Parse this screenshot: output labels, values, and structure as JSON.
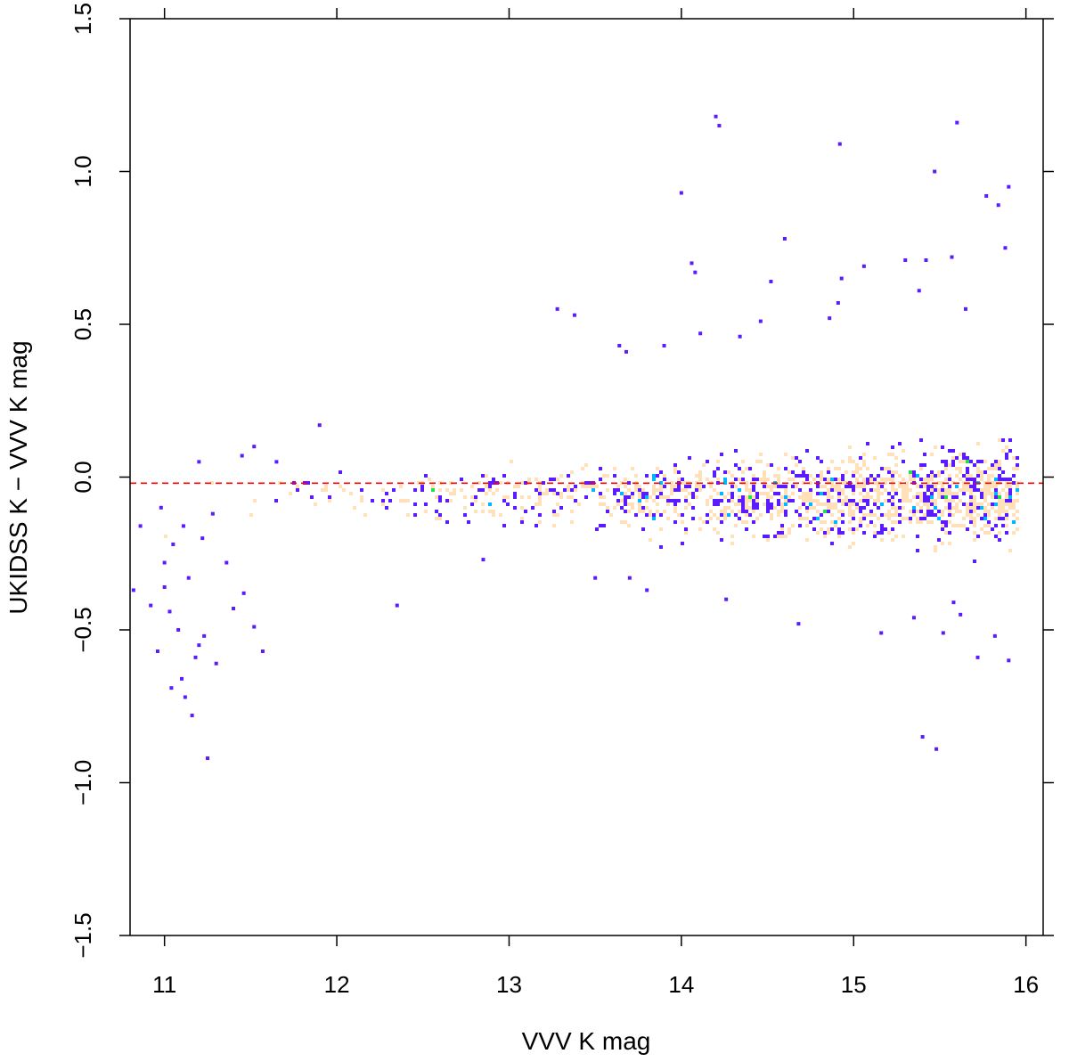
{
  "chart_data": {
    "type": "heatmap",
    "subtype": "2d-density-scatter",
    "title": "",
    "xlabel": "VVV K mag",
    "ylabel": "UKIDSS K − VVV K mag",
    "xlim": [
      10.8,
      16.1
    ],
    "ylim": [
      -1.5,
      1.5
    ],
    "x_ticks": [
      11,
      12,
      13,
      14,
      15,
      16
    ],
    "x_tick_labels": [
      "11",
      "12",
      "13",
      "14",
      "15",
      "16"
    ],
    "y_ticks": [
      -1.5,
      -1.0,
      -0.5,
      0.0,
      0.5,
      1.0,
      1.5
    ],
    "y_tick_labels": [
      "−1.5",
      "−1.0",
      "−0.5",
      "0.0",
      "0.5",
      "1.0",
      "1.5"
    ],
    "grid": false,
    "reference_line": {
      "y": -0.02,
      "style": "dashed",
      "color": "#ff0000"
    },
    "colormap": [
      "#5a1cff",
      "#00b8ff",
      "#20e050",
      "#c8f020",
      "#ffff00",
      "#ffd84c",
      "#ffe0b8"
    ],
    "density_model": {
      "x_range": [
        10.9,
        15.95
      ],
      "median_offset": -0.06,
      "scatter_at_bright_end": 0.03,
      "scatter_at_faint_end": 0.11,
      "density_peak_x": 15.5
    },
    "outliers": [
      {
        "x": 14.2,
        "y": 1.18
      },
      {
        "x": 14.22,
        "y": 1.15
      },
      {
        "x": 15.6,
        "y": 1.16
      },
      {
        "x": 14.92,
        "y": 1.09
      },
      {
        "x": 15.47,
        "y": 1.0
      },
      {
        "x": 14.0,
        "y": 0.93
      },
      {
        "x": 15.77,
        "y": 0.92
      },
      {
        "x": 15.9,
        "y": 0.95
      },
      {
        "x": 15.84,
        "y": 0.89
      },
      {
        "x": 14.6,
        "y": 0.78
      },
      {
        "x": 14.06,
        "y": 0.7
      },
      {
        "x": 14.08,
        "y": 0.67
      },
      {
        "x": 15.06,
        "y": 0.69
      },
      {
        "x": 15.3,
        "y": 0.71
      },
      {
        "x": 15.42,
        "y": 0.71
      },
      {
        "x": 15.57,
        "y": 0.72
      },
      {
        "x": 14.52,
        "y": 0.64
      },
      {
        "x": 14.93,
        "y": 0.65
      },
      {
        "x": 15.38,
        "y": 0.61
      },
      {
        "x": 15.88,
        "y": 0.75
      },
      {
        "x": 13.28,
        "y": 0.55
      },
      {
        "x": 13.38,
        "y": 0.53
      },
      {
        "x": 14.46,
        "y": 0.51
      },
      {
        "x": 14.86,
        "y": 0.52
      },
      {
        "x": 14.91,
        "y": 0.57
      },
      {
        "x": 15.65,
        "y": 0.55
      },
      {
        "x": 14.34,
        "y": 0.46
      },
      {
        "x": 13.9,
        "y": 0.43
      },
      {
        "x": 13.64,
        "y": 0.43
      },
      {
        "x": 13.68,
        "y": 0.41
      },
      {
        "x": 14.11,
        "y": 0.47
      },
      {
        "x": 11.65,
        "y": 0.05
      },
      {
        "x": 11.45,
        "y": 0.07
      },
      {
        "x": 11.2,
        "y": 0.05
      },
      {
        "x": 11.52,
        "y": 0.1
      },
      {
        "x": 11.9,
        "y": 0.17
      },
      {
        "x": 13.5,
        "y": -0.33
      },
      {
        "x": 13.7,
        "y": -0.33
      },
      {
        "x": 13.8,
        "y": -0.37
      },
      {
        "x": 14.26,
        "y": -0.4
      },
      {
        "x": 14.68,
        "y": -0.48
      },
      {
        "x": 15.16,
        "y": -0.51
      },
      {
        "x": 15.35,
        "y": -0.46
      },
      {
        "x": 15.52,
        "y": -0.51
      },
      {
        "x": 15.58,
        "y": -0.41
      },
      {
        "x": 15.62,
        "y": -0.45
      },
      {
        "x": 15.72,
        "y": -0.59
      },
      {
        "x": 15.82,
        "y": -0.52
      },
      {
        "x": 15.9,
        "y": -0.6
      },
      {
        "x": 12.35,
        "y": -0.42
      },
      {
        "x": 12.85,
        "y": -0.27
      },
      {
        "x": 15.4,
        "y": -0.85
      },
      {
        "x": 15.48,
        "y": -0.89
      },
      {
        "x": 10.82,
        "y": -0.37
      },
      {
        "x": 10.86,
        "y": -0.16
      },
      {
        "x": 10.92,
        "y": -0.42
      },
      {
        "x": 10.96,
        "y": -0.57
      },
      {
        "x": 11.04,
        "y": -0.69
      },
      {
        "x": 11.1,
        "y": -0.66
      },
      {
        "x": 11.12,
        "y": -0.72
      },
      {
        "x": 11.16,
        "y": -0.78
      },
      {
        "x": 11.18,
        "y": -0.59
      },
      {
        "x": 11.2,
        "y": -0.55
      },
      {
        "x": 11.23,
        "y": -0.52
      },
      {
        "x": 11.3,
        "y": -0.61
      },
      {
        "x": 11.25,
        "y": -0.92
      },
      {
        "x": 11.0,
        "y": -0.36
      },
      {
        "x": 11.03,
        "y": -0.44
      },
      {
        "x": 11.08,
        "y": -0.5
      },
      {
        "x": 11.14,
        "y": -0.33
      },
      {
        "x": 11.36,
        "y": -0.28
      },
      {
        "x": 11.4,
        "y": -0.43
      },
      {
        "x": 11.46,
        "y": -0.38
      },
      {
        "x": 11.52,
        "y": -0.49
      },
      {
        "x": 11.57,
        "y": -0.57
      },
      {
        "x": 11.05,
        "y": -0.22
      },
      {
        "x": 11.11,
        "y": -0.16
      },
      {
        "x": 11.0,
        "y": -0.28
      },
      {
        "x": 10.98,
        "y": -0.1
      },
      {
        "x": 11.22,
        "y": -0.2
      },
      {
        "x": 11.28,
        "y": -0.12
      }
    ]
  }
}
